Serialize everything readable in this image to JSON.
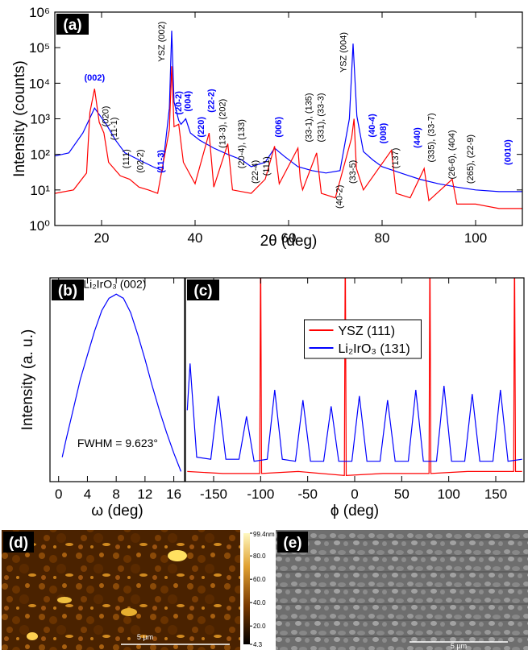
{
  "chart_data": [
    {
      "type": "line",
      "panel_label": "(a)",
      "x_label": "2θ (deg)",
      "y_label": "Intensity (counts)",
      "xlim": [
        10,
        110
      ],
      "ylim": [
        1,
        1000000
      ],
      "log_y": true,
      "xticks": [
        20,
        40,
        60,
        80,
        100
      ],
      "yticks": [
        {
          "value": 1,
          "label": "10⁰"
        },
        {
          "value": 10,
          "label": "10¹"
        },
        {
          "value": 100,
          "label": "10²"
        },
        {
          "value": 1000,
          "label": "10³"
        },
        {
          "value": 10000,
          "label": "10⁴"
        },
        {
          "value": 100000,
          "label": "10⁵"
        },
        {
          "value": 1000000,
          "label": "10⁶"
        }
      ],
      "series": [
        {
          "color": "#0000ff",
          "x": [
            10,
            13,
            16,
            18.5,
            21,
            23,
            25,
            28,
            31,
            33,
            34.5,
            35,
            35.5,
            36.5,
            37,
            38,
            39,
            41,
            44,
            47,
            50,
            52,
            55,
            57,
            59,
            62,
            65,
            68,
            71,
            73,
            73.8,
            74.6,
            76,
            78,
            80,
            84,
            88,
            92,
            96,
            100,
            105,
            110
          ],
          "values": [
            90,
            110,
            400,
            2000,
            700,
            250,
            110,
            70,
            45,
            35,
            2000,
            300000,
            3000,
            900,
            700,
            1000,
            400,
            250,
            150,
            100,
            70,
            45,
            60,
            150,
            90,
            45,
            35,
            30,
            35,
            1000,
            130000,
            1200,
            120,
            70,
            45,
            30,
            20,
            15,
            12,
            10,
            9,
            9
          ]
        },
        {
          "color": "#ff0000",
          "x": [
            10,
            14,
            16.8,
            17.5,
            18.5,
            19.5,
            20.5,
            21.5,
            24,
            26,
            28,
            30,
            32,
            34.5,
            35,
            35.5,
            36.5,
            37.5,
            40,
            43,
            44,
            47,
            48,
            52,
            55,
            57,
            58,
            62,
            62.5,
            63,
            66,
            67,
            70,
            73.5,
            74,
            74.5,
            76,
            82,
            83,
            86,
            89,
            90,
            95,
            96,
            100,
            105,
            110
          ],
          "values": [
            8,
            10,
            30,
            1500,
            7000,
            800,
            400,
            60,
            25,
            20,
            12,
            10,
            8,
            500,
            30000,
            600,
            700,
            60,
            15,
            400,
            12,
            200,
            10,
            8,
            20,
            170,
            15,
            150,
            20,
            10,
            110,
            8,
            6,
            300,
            1000,
            40,
            10,
            130,
            8,
            6,
            40,
            5,
            20,
            4,
            4,
            3,
            3
          ]
        }
      ],
      "annotations": [
        {
          "text": "(002)",
          "x": 18.5,
          "y": 12000,
          "color": "#0000ff",
          "vertical": false
        },
        {
          "text": "(020)",
          "x": 20.8,
          "y": 600,
          "color": "#000000",
          "vertical": true
        },
        {
          "text": "(11-1)",
          "x": 22.6,
          "y": 250,
          "color": "#000000",
          "vertical": true
        },
        {
          "text": "(111)",
          "x": 25.2,
          "y": 40,
          "color": "#000000",
          "vertical": true
        },
        {
          "text": "(02-2)",
          "x": 28.2,
          "y": 30,
          "color": "#000000",
          "vertical": true
        },
        {
          "text": "(11-3)",
          "x": 32.6,
          "y": 30,
          "color": "#0000ff",
          "vertical": true
        },
        {
          "text": "YSZ (002)",
          "x": 32.8,
          "y": 40000,
          "color": "#000000",
          "vertical": true
        },
        {
          "text": "(20-2)",
          "x": 36.4,
          "y": 1300,
          "color": "#0000ff",
          "vertical": true
        },
        {
          "text": "(004)",
          "x": 38.4,
          "y": 1600,
          "color": "#0000ff",
          "vertical": true
        },
        {
          "text": "(220)",
          "x": 41.2,
          "y": 300,
          "color": "#0000ff",
          "vertical": true
        },
        {
          "text": "(22-2)",
          "x": 43.4,
          "y": 1500,
          "color": "#0000ff",
          "vertical": true
        },
        {
          "text": "(13-3), (202)",
          "x": 45.8,
          "y": 150,
          "color": "#000000",
          "vertical": true
        },
        {
          "text": "(20-4), (133)",
          "x": 49.8,
          "y": 40,
          "color": "#000000",
          "vertical": true
        },
        {
          "text": "(22-4)",
          "x": 52.8,
          "y": 15,
          "color": "#000000",
          "vertical": true
        },
        {
          "text": "(111)",
          "x": 55.2,
          "y": 25,
          "color": "#000000",
          "vertical": true
        },
        {
          "text": "(006)",
          "x": 57.8,
          "y": 300,
          "color": "#0000ff",
          "vertical": true
        },
        {
          "text": "(33-1), (135)",
          "x": 64.2,
          "y": 220,
          "color": "#000000",
          "vertical": true
        },
        {
          "text": "(331), (33-3)",
          "x": 66.8,
          "y": 220,
          "color": "#000000",
          "vertical": true
        },
        {
          "text": "YSZ (004)",
          "x": 71.6,
          "y": 20000,
          "color": "#000000",
          "vertical": true
        },
        {
          "text": "(40-2)",
          "x": 70.8,
          "y": 3,
          "color": "#000000",
          "vertical": true
        },
        {
          "text": "(33-5)",
          "x": 73.6,
          "y": 15,
          "color": "#000000",
          "vertical": true
        },
        {
          "text": "(40-4)",
          "x": 77.8,
          "y": 300,
          "color": "#0000ff",
          "vertical": true
        },
        {
          "text": "(008)",
          "x": 80.2,
          "y": 200,
          "color": "#0000ff",
          "vertical": true
        },
        {
          "text": "(137)",
          "x": 82.8,
          "y": 40,
          "color": "#000000",
          "vertical": true
        },
        {
          "text": "(440)",
          "x": 87.4,
          "y": 150,
          "color": "#0000ff",
          "vertical": true
        },
        {
          "text": "(335), (33-7)",
          "x": 90.4,
          "y": 60,
          "color": "#000000",
          "vertical": true
        },
        {
          "text": "(26-6), (404)",
          "x": 94.8,
          "y": 20,
          "color": "#000000",
          "vertical": true
        },
        {
          "text": "(265), (22-9)",
          "x": 98.8,
          "y": 15,
          "color": "#000000",
          "vertical": true
        },
        {
          "text": "(0010)",
          "x": 106.8,
          "y": 50,
          "color": "#0000ff",
          "vertical": true
        }
      ]
    },
    {
      "type": "line",
      "panel_label": "(b)",
      "x_label": "ω (deg)",
      "y_label": "Intensity (a. u.)",
      "xlim": [
        -1.2,
        17.5
      ],
      "ylim": [
        0,
        1
      ],
      "log_y": false,
      "xticks": [
        0,
        4,
        8,
        12,
        16
      ],
      "series": [
        {
          "color": "#0000ff",
          "x": [
            0.5,
            1,
            2,
            3,
            4,
            5,
            6,
            7,
            7.5,
            8,
            8.5,
            9,
            10,
            11,
            12,
            13,
            14,
            15,
            16,
            17
          ],
          "values": [
            0.12,
            0.2,
            0.35,
            0.5,
            0.62,
            0.74,
            0.84,
            0.9,
            0.91,
            0.92,
            0.91,
            0.9,
            0.83,
            0.72,
            0.6,
            0.47,
            0.35,
            0.24,
            0.14,
            0.05
          ]
        }
      ],
      "annotations": [
        {
          "text": "Li₂IrO₃ (002)",
          "x": 7.8,
          "y": 0.95,
          "color": "#000000",
          "vertical": false
        },
        {
          "text": "FWHM = 9.623°",
          "x": 8.2,
          "y": 0.17,
          "color": "#000000",
          "vertical": false
        }
      ]
    },
    {
      "type": "line",
      "panel_label": "(c)",
      "x_label": "ϕ (deg)",
      "xlim": [
        -180,
        180
      ],
      "ylim": [
        0,
        1
      ],
      "log_y": false,
      "xticks": [
        -150,
        -100,
        -50,
        0,
        50,
        100,
        150
      ],
      "legend": "upper center",
      "series": [
        {
          "name": "YSZ (111)",
          "color": "#ff0000",
          "x": [
            -178,
            -140,
            -101,
            -100,
            -99,
            -60,
            -11,
            -10,
            -9,
            30,
            79,
            80,
            81,
            120,
            169,
            170,
            171,
            178
          ],
          "values": [
            0.05,
            0.04,
            0.04,
            1.2,
            0.04,
            0.05,
            0.03,
            1.2,
            0.03,
            0.04,
            0.04,
            1.2,
            0.04,
            0.05,
            0.05,
            1.2,
            0.05,
            0.05
          ]
        },
        {
          "name": "Li₂IrO₃ (131)",
          "color": "#0000ff",
          "x": [
            -178,
            -175,
            -168,
            -153,
            -145,
            -137,
            -123,
            -115,
            -107,
            -93,
            -85,
            -77,
            -63,
            -55,
            -47,
            -33,
            -25,
            -17,
            -3,
            5,
            13,
            27,
            35,
            43,
            57,
            65,
            73,
            87,
            95,
            103,
            117,
            125,
            133,
            147,
            155,
            163,
            178
          ],
          "values": [
            0.35,
            0.58,
            0.12,
            0.11,
            0.42,
            0.11,
            0.11,
            0.32,
            0.1,
            0.11,
            0.45,
            0.11,
            0.1,
            0.4,
            0.1,
            0.1,
            0.37,
            0.1,
            0.1,
            0.42,
            0.1,
            0.1,
            0.4,
            0.1,
            0.1,
            0.45,
            0.1,
            0.1,
            0.47,
            0.1,
            0.1,
            0.43,
            0.1,
            0.1,
            0.45,
            0.1,
            0.11
          ]
        }
      ]
    }
  ],
  "images": [
    {
      "label": "(d)",
      "scale_bar": "5 μm",
      "colorbar": {
        "lim": [
          4.3,
          99.4
        ],
        "ticks": [
          {
            "value": 99.4,
            "label": "99.4nm"
          },
          {
            "value": 80,
            "label": "80.0"
          },
          {
            "value": 60,
            "label": "60.0"
          },
          {
            "value": 40,
            "label": "40.0"
          },
          {
            "value": 20,
            "label": "20.0"
          },
          4.3
        ]
      }
    },
    {
      "label": "(e)",
      "scale_bar": "5 μm"
    }
  ]
}
